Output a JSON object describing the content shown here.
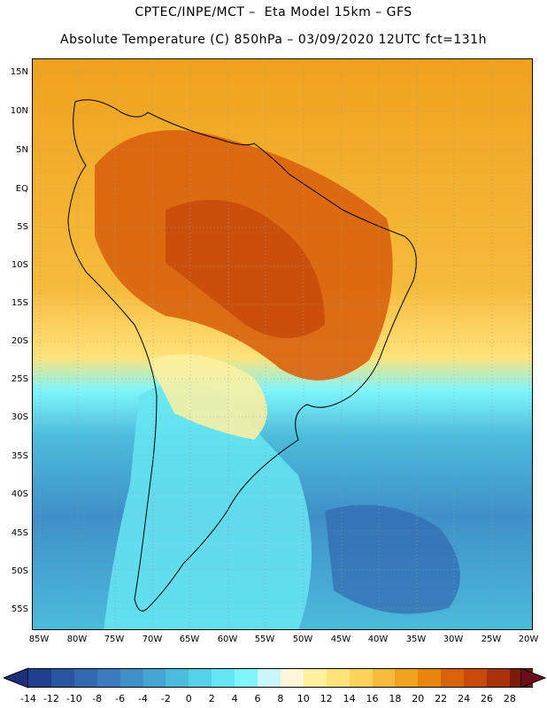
{
  "header": {
    "line1": "CPTEC/INPE/MCT –  Eta Model 15km – GFS",
    "line2": "Absolute Temperature (C) 850hPa – 03/09/2020 12UTC fct=131h"
  },
  "axes": {
    "lat_labels": [
      "15N",
      "10N",
      "5N",
      "EQ",
      "5S",
      "10S",
      "15S",
      "20S",
      "25S",
      "30S",
      "35S",
      "40S",
      "45S",
      "50S",
      "55S"
    ],
    "lon_labels": [
      "85W",
      "80W",
      "75W",
      "70W",
      "65W",
      "60W",
      "55W",
      "50W",
      "45W",
      "40W",
      "35W",
      "30W",
      "25W",
      "20W"
    ]
  },
  "colorbar": {
    "ticks": [
      "-14",
      "-12",
      "-10",
      "-8",
      "-6",
      "-4",
      "-2",
      "0",
      "2",
      "4",
      "6",
      "8",
      "10",
      "12",
      "14",
      "16",
      "18",
      "20",
      "22",
      "24",
      "26",
      "28"
    ],
    "colors": [
      "#1f3f8f",
      "#2a55a0",
      "#3268b0",
      "#3a7bbd",
      "#3f90c8",
      "#44a6d3",
      "#4bbcdc",
      "#55d2e8",
      "#66e6f2",
      "#7ff5fb",
      "#c8f6fb",
      "#fff6d8",
      "#fff0a0",
      "#ffe27a",
      "#fcd25a",
      "#f6bb3c",
      "#f0a21e",
      "#e8850f",
      "#d9620c",
      "#c84a0a",
      "#a8320a",
      "#7a1c0c"
    ],
    "under_color": "#1c2f7a",
    "over_color": "#6a0f1a"
  }
}
